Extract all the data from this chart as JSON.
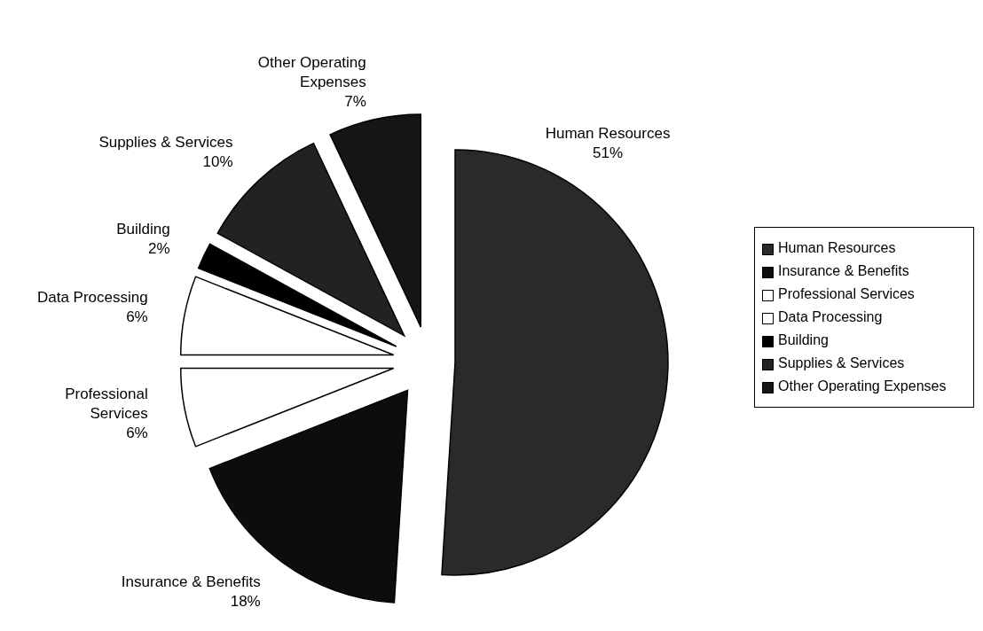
{
  "chart_data": {
    "type": "pie",
    "categories": [
      "Human Resources",
      "Insurance & Benefits",
      "Professional Services",
      "Data Processing",
      "Building",
      "Supplies & Services",
      "Other Operating Expenses"
    ],
    "values": [
      51,
      18,
      6,
      6,
      2,
      10,
      7
    ],
    "value_labels": [
      "51%",
      "18%",
      "6%",
      "6%",
      "2%",
      "10%",
      "7%"
    ],
    "colors": [
      "#2a2a2a",
      "#0d0d0d",
      "#ffffff",
      "#ffffff",
      "#000000",
      "#222222",
      "#151515"
    ],
    "legend": "right"
  }
}
